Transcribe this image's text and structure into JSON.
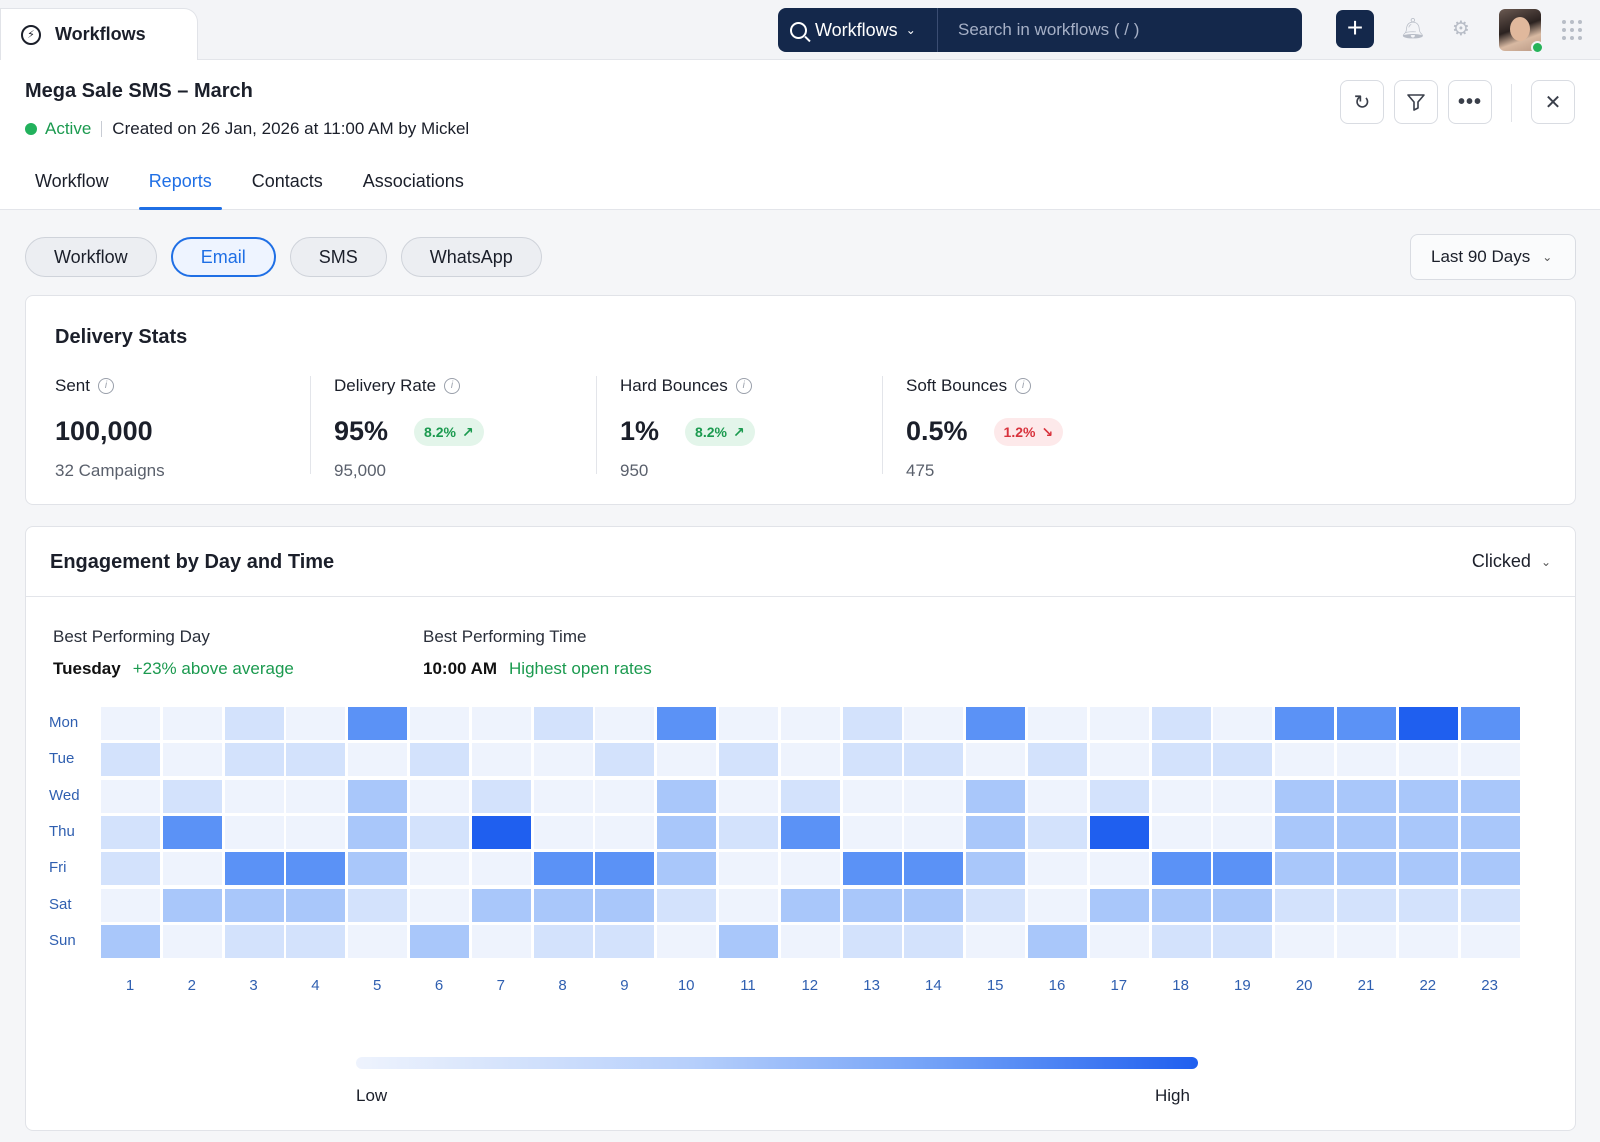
{
  "app_tab": {
    "label": "Workflows",
    "icon": "bolt-icon"
  },
  "search": {
    "scope": "Workflows",
    "placeholder": "Search in workflows ( / )"
  },
  "header": {
    "title": "Mega Sale SMS – March",
    "status": "Active",
    "created": "Created on 26 Jan, 2026 at 11:00 AM by Mickel"
  },
  "tabs": [
    "Workflow",
    "Reports",
    "Contacts",
    "Associations"
  ],
  "active_tab": "Reports",
  "channels": [
    "Workflow",
    "Email",
    "SMS",
    "WhatsApp"
  ],
  "active_channel": "Email",
  "date_range": "Last 90 Days",
  "delivery": {
    "title": "Delivery Stats",
    "stats": [
      {
        "label": "Sent",
        "value": "100,000",
        "sub": "32 Campaigns",
        "badge": null
      },
      {
        "label": "Delivery Rate",
        "value": "95%",
        "sub": "95,000",
        "badge": {
          "text": "8.2%",
          "trend": "up"
        }
      },
      {
        "label": "Hard Bounces",
        "value": "1%",
        "sub": "950",
        "badge": {
          "text": "8.2%",
          "trend": "up"
        }
      },
      {
        "label": "Soft Bounces",
        "value": "0.5%",
        "sub": "475",
        "badge": {
          "text": "1.2%",
          "trend": "down"
        }
      }
    ]
  },
  "engagement": {
    "title": "Engagement by Day and Time",
    "metric": "Clicked",
    "best_day": {
      "label": "Best Performing Day",
      "value": "Tuesday",
      "note": "+23% above average"
    },
    "best_time": {
      "label": "Best Performing Time",
      "value": "10:00 AM",
      "note": "Highest open rates"
    }
  },
  "chart_data": {
    "type": "heatmap",
    "rows": [
      "Mon",
      "Tue",
      "Wed",
      "Thu",
      "Fri",
      "Sat",
      "Sun"
    ],
    "columns": [
      "1",
      "2",
      "3",
      "4",
      "5",
      "6",
      "7",
      "8",
      "9",
      "10",
      "11",
      "12",
      "13",
      "14",
      "15",
      "16",
      "17",
      "18",
      "19",
      "20",
      "21",
      "22",
      "23"
    ],
    "values": [
      [
        1,
        1,
        2,
        1,
        4,
        1,
        1,
        2,
        1,
        4,
        1,
        1,
        2,
        1,
        4,
        1,
        1,
        2,
        1,
        4,
        4,
        5,
        4
      ],
      [
        2,
        1,
        2,
        2,
        1,
        2,
        1,
        1,
        2,
        1,
        2,
        1,
        2,
        2,
        1,
        2,
        1,
        2,
        2,
        1,
        1,
        1,
        1
      ],
      [
        1,
        2,
        1,
        1,
        3,
        1,
        2,
        1,
        1,
        3,
        1,
        2,
        1,
        1,
        3,
        1,
        2,
        1,
        1,
        3,
        3,
        3,
        3
      ],
      [
        2,
        4,
        1,
        1,
        3,
        2,
        5,
        1,
        1,
        3,
        2,
        4,
        1,
        1,
        3,
        2,
        5,
        1,
        1,
        3,
        3,
        3,
        3
      ],
      [
        2,
        1,
        4,
        4,
        3,
        1,
        1,
        4,
        4,
        3,
        1,
        1,
        4,
        4,
        3,
        1,
        1,
        4,
        4,
        3,
        3,
        3,
        3
      ],
      [
        1,
        3,
        3,
        3,
        2,
        1,
        3,
        3,
        3,
        2,
        1,
        3,
        3,
        3,
        2,
        1,
        3,
        3,
        3,
        2,
        2,
        2,
        2
      ],
      [
        3,
        1,
        2,
        2,
        1,
        3,
        1,
        2,
        2,
        1,
        3,
        1,
        2,
        2,
        1,
        3,
        1,
        2,
        2,
        1,
        1,
        1,
        1
      ]
    ],
    "scale": {
      "min": 1,
      "max": 5,
      "low_label": "Low",
      "high_label": "High"
    },
    "colors": [
      "#eef3fd",
      "#d3e2fc",
      "#a9c7fa",
      "#5b92f6",
      "#1f5fef"
    ]
  },
  "icons": {
    "add": "plus-icon",
    "bell": "bell-icon",
    "settings": "gear-icon",
    "apps": "grid-icon",
    "refresh": "refresh-icon",
    "filter": "filter-icon",
    "more": "more-icon",
    "close": "close-icon",
    "info": "info-icon"
  }
}
